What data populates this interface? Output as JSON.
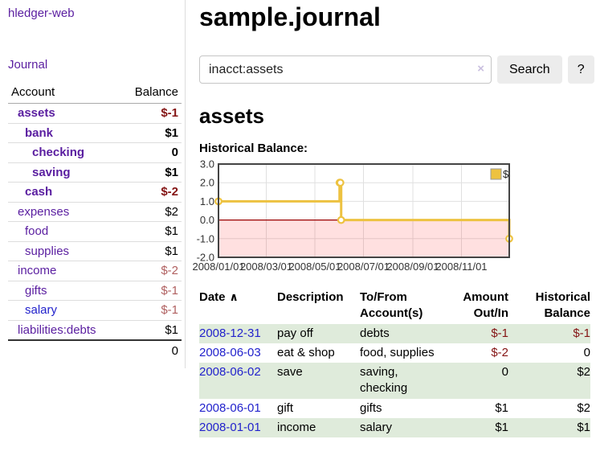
{
  "colors": {
    "purple": "#5a1ea0",
    "link_blue": "#2222cc",
    "negative": "#841414",
    "negative_muted": "#b06060",
    "row_green": "#dfebdb",
    "chart_line": "#edc240",
    "chart_negative_fill": "rgba(255,0,0,0.12)",
    "chart_zero_line": "#990000"
  },
  "sidebar": {
    "brand": "hledger-web",
    "nav_journal": "Journal",
    "accounts": {
      "col_account": "Account",
      "col_balance": "Balance",
      "rows": [
        {
          "name": "assets",
          "depth": 1,
          "bold": true,
          "balance": "$-1",
          "neg": "strong"
        },
        {
          "name": "bank",
          "depth": 2,
          "bold": true,
          "balance": "$1"
        },
        {
          "name": "checking",
          "depth": 3,
          "bold": true,
          "balance": "0"
        },
        {
          "name": "saving",
          "depth": 3,
          "bold": true,
          "balance": "$1"
        },
        {
          "name": "cash",
          "depth": 2,
          "bold": true,
          "balance": "$-2",
          "neg": "strong"
        },
        {
          "name": "expenses",
          "depth": 1,
          "balance": "$2"
        },
        {
          "name": "food",
          "depth": 2,
          "balance": "$1"
        },
        {
          "name": "supplies",
          "depth": 2,
          "balance": "$1"
        },
        {
          "name": "income",
          "depth": 1,
          "balance": "$-2",
          "neg": "muted"
        },
        {
          "name": "gifts",
          "depth": 2,
          "balance": "$-1",
          "neg": "muted"
        },
        {
          "name": "salary",
          "depth": 2,
          "balance": "$-1",
          "neg": "muted",
          "link_color": "blue"
        },
        {
          "name": "liabilities:debts",
          "depth": 1,
          "balance": "$1"
        }
      ],
      "total": "0"
    }
  },
  "main": {
    "title": "sample.journal",
    "search": {
      "value": "inacct:assets",
      "clear_icon": "×",
      "search_button": "Search",
      "help_button": "?"
    },
    "account_heading": "assets",
    "section_label": "Historical Balance:"
  },
  "register": {
    "headers": {
      "date": "Date",
      "sort_arrow": "∧",
      "description": "Description",
      "accounts": "To/From Account(s)",
      "amount": "Amount Out/In",
      "balance": "Historical Balance"
    },
    "rows": [
      {
        "date": "2008-12-31",
        "description": "pay off",
        "accounts": "debts",
        "amount": "$-1",
        "amount_neg": true,
        "balance": "$-1",
        "balance_neg": true
      },
      {
        "date": "2008-06-03",
        "description": "eat & shop",
        "accounts": "food, supplies",
        "amount": "$-2",
        "amount_neg": true,
        "balance": "0"
      },
      {
        "date": "2008-06-02",
        "description": "save",
        "accounts": "saving, checking",
        "amount": "0",
        "balance": "$2"
      },
      {
        "date": "2008-06-01",
        "description": "gift",
        "accounts": "gifts",
        "amount": "$1",
        "balance": "$2"
      },
      {
        "date": "2008-01-01",
        "description": "income",
        "accounts": "salary",
        "amount": "$1",
        "balance": "$1"
      }
    ]
  },
  "chart_data": {
    "type": "line",
    "step": true,
    "title": "Historical Balance:",
    "series": [
      {
        "name": "$",
        "color": "#edc240",
        "points": [
          [
            "2008-01-01",
            1
          ],
          [
            "2008-06-01",
            2
          ],
          [
            "2008-06-02",
            2
          ],
          [
            "2008-06-03",
            0
          ],
          [
            "2008-12-31",
            -1
          ]
        ]
      }
    ],
    "xlim": [
      "2008-01-01",
      "2008-12-31"
    ],
    "ylim": [
      -2,
      3
    ],
    "x_ticks": [
      "2008/01/01",
      "2008/03/01",
      "2008/05/01",
      "2008/07/01",
      "2008/09/01",
      "2008/11/01"
    ],
    "y_ticks": [
      3.0,
      2.0,
      1.0,
      0.0,
      -1.0,
      -2.0
    ],
    "grid": true,
    "legend_position": "top-right",
    "legend": [
      {
        "label": "$",
        "color": "#edc240"
      }
    ],
    "negative_region_shaded": true,
    "zero_line_color": "#990000"
  }
}
